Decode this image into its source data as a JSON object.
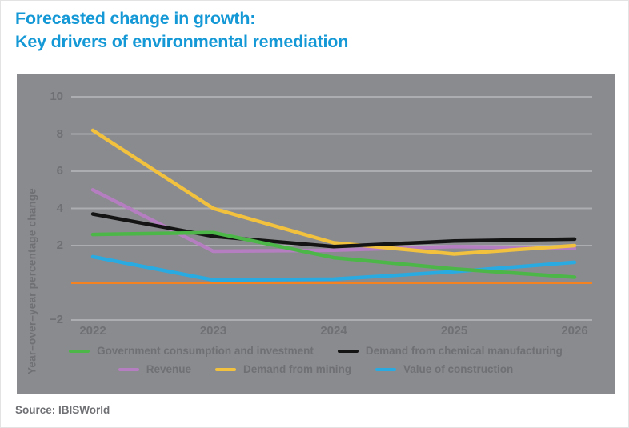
{
  "page": {
    "title_line1": "Forecasted change in growth:",
    "title_line2": "Key drivers of environmental remediation",
    "source": "Source: IBISWorld"
  },
  "colors": {
    "title_blue": "#1599D6",
    "panel_gray": "#8A8B8E",
    "gridline": "#ACADB0",
    "text_gray": "#6F7074",
    "zero_line_orange": "#F58220"
  },
  "chart_data": {
    "type": "line",
    "title": "Forecasted change in growth: Key drivers of environmental remediation",
    "x": [
      2022,
      2023,
      2024,
      2025,
      2026
    ],
    "xlabel": "",
    "ylabel": "Year–over–year percentage change",
    "ylim": [
      -2,
      10
    ],
    "yticks": [
      10,
      8,
      6,
      4,
      2,
      -2
    ],
    "zero_line": 0,
    "grid": true,
    "legend_position": "bottom",
    "series": [
      {
        "name": "Government consumption and investment",
        "color": "#4CB748",
        "values": [
          2.6,
          2.7,
          1.35,
          0.75,
          0.3
        ]
      },
      {
        "name": "Demand from chemical manufacturing",
        "color": "#141414",
        "values": [
          3.7,
          2.5,
          1.95,
          2.25,
          2.35
        ]
      },
      {
        "name": "Revenue",
        "color": "#B57EC0",
        "values": [
          5.0,
          1.7,
          1.75,
          1.95,
          1.85
        ]
      },
      {
        "name": "Demand from mining",
        "color": "#F2C23E",
        "values": [
          8.2,
          4.0,
          2.15,
          1.55,
          2.0
        ]
      },
      {
        "name": "Value of construction",
        "color": "#29ABE2",
        "values": [
          1.4,
          0.15,
          0.2,
          0.6,
          1.1
        ]
      }
    ],
    "legend_rows": [
      [
        0,
        1
      ],
      [
        2,
        3,
        4
      ]
    ],
    "draw_order": [
      2,
      3,
      4,
      1,
      0
    ]
  }
}
